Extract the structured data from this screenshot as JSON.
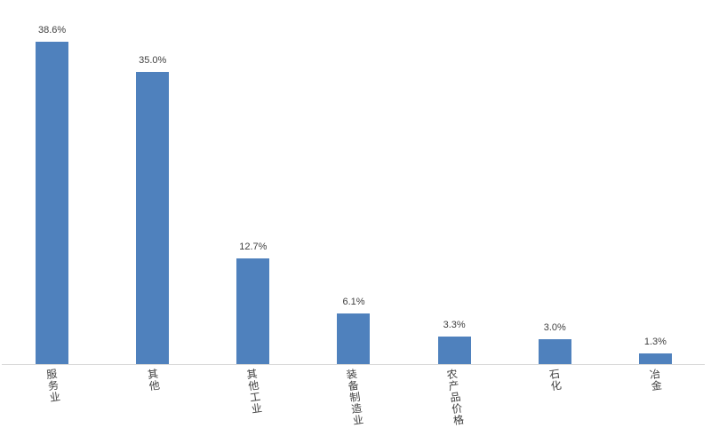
{
  "chart_data": {
    "type": "bar",
    "categories": [
      "服务业",
      "其他",
      "其他工业",
      "装备制造业",
      "农产品价格",
      "石化",
      "冶金"
    ],
    "values": [
      38.6,
      35.0,
      12.7,
      6.1,
      3.3,
      3.0,
      1.3
    ],
    "data_labels": [
      "38.6%",
      "35.0%",
      "12.7%",
      "6.1%",
      "3.3%",
      "3.0%",
      "1.3%"
    ],
    "title": "",
    "xlabel": "",
    "ylabel": "",
    "unit": "%",
    "ylim": [
      0,
      43.6
    ],
    "grid": false,
    "legend": false,
    "bar_color": "#4F81BD",
    "axis_line_color": "#D9D9D9",
    "label_text_color": "#404040",
    "background_color": "#FFFFFF",
    "category_label_orientation": "vertical-upright-tilted"
  }
}
